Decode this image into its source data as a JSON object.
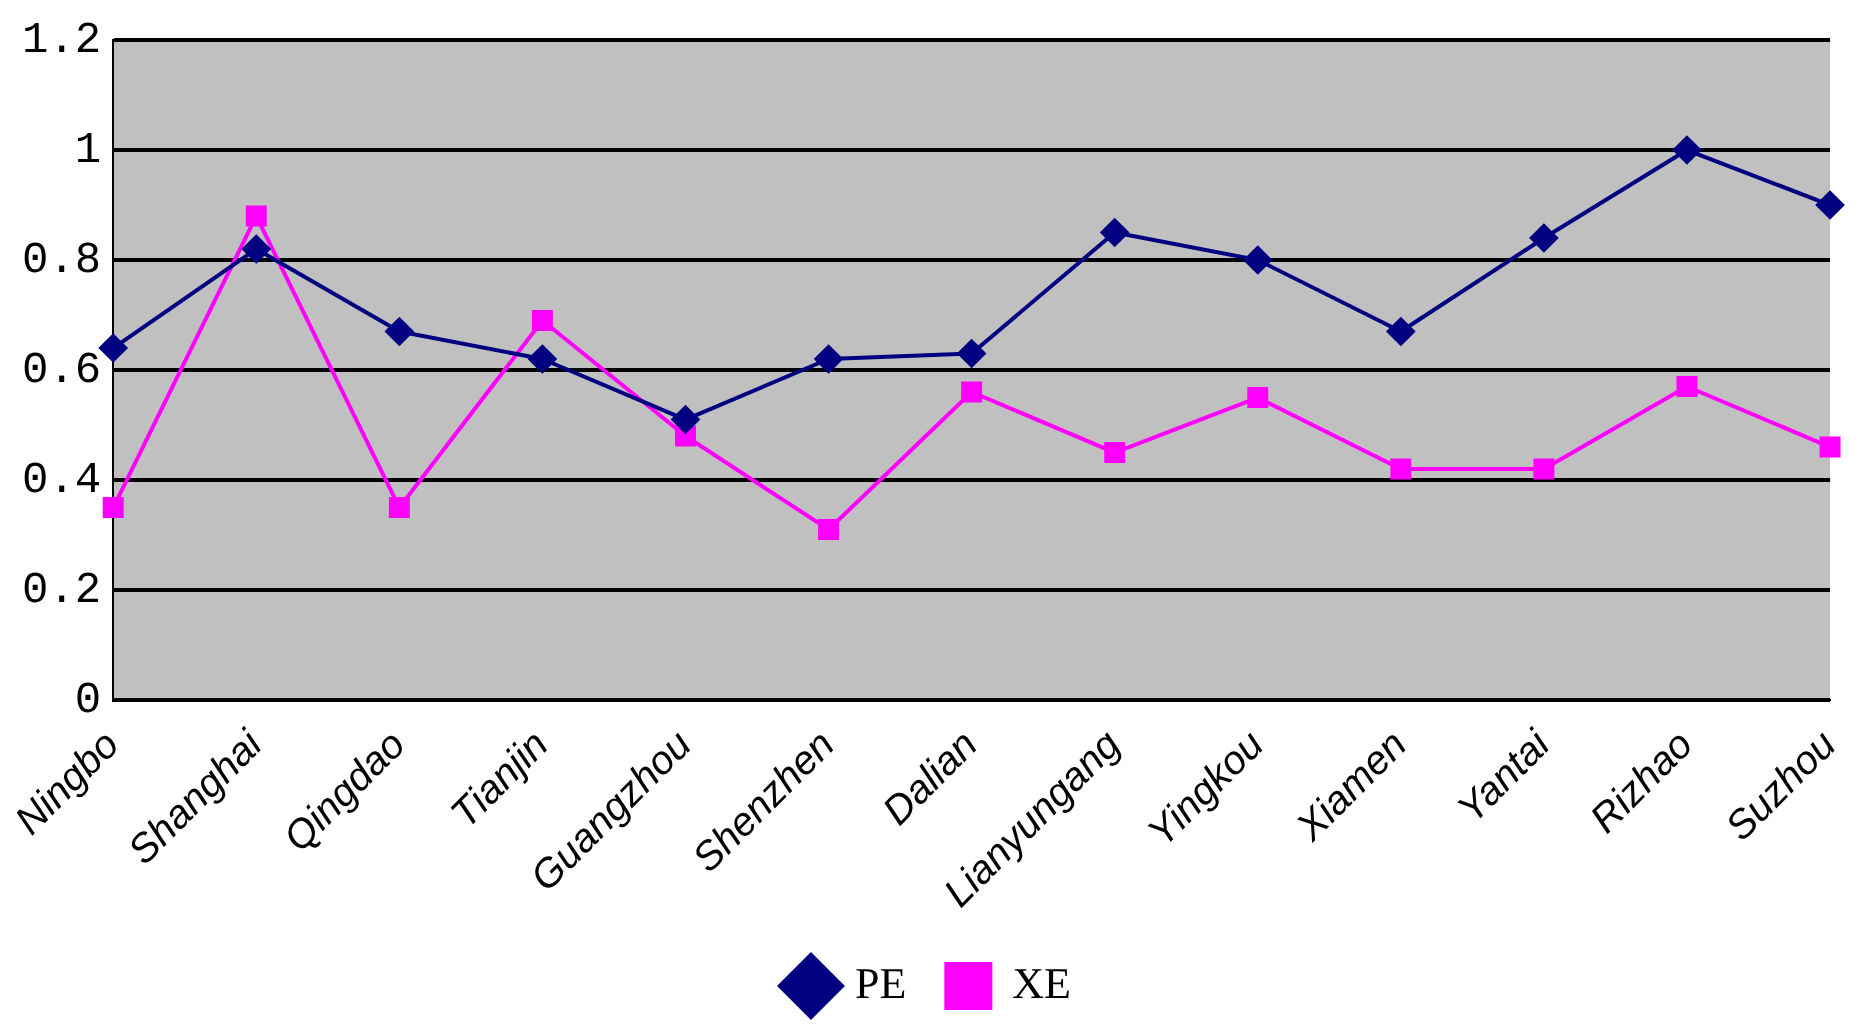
{
  "chart_data": {
    "type": "line",
    "categories": [
      "Ningbo",
      "Shanghai",
      "Qingdao",
      "Tianjin",
      "Guangzhou",
      "Shenzhen",
      "Dalian",
      "Lianyungang",
      "Yingkou",
      "Xiamen",
      "Yantai",
      "Rizhao",
      "Suzhou"
    ],
    "series": [
      {
        "name": "PE",
        "color": "#000080",
        "marker": "diamond",
        "values": [
          0.64,
          0.82,
          0.67,
          0.62,
          0.51,
          0.62,
          0.63,
          0.85,
          0.8,
          0.67,
          0.84,
          1.0,
          0.9
        ]
      },
      {
        "name": "XE",
        "color": "#ff00ff",
        "marker": "square",
        "values": [
          0.35,
          0.88,
          0.35,
          0.69,
          0.48,
          0.31,
          0.56,
          0.45,
          0.55,
          0.42,
          0.42,
          0.57,
          0.46
        ]
      }
    ],
    "ylim": [
      0,
      1.2
    ],
    "yticks": [
      0,
      {
        "value": 0.2,
        "label": "0.2"
      },
      {
        "value": 0.4,
        "label": "0.4"
      },
      {
        "value": 0.6,
        "label": "0.6"
      },
      {
        "value": 0.8,
        "label": "0.8"
      },
      1,
      {
        "value": 1.2,
        "label": "1.2"
      }
    ],
    "grid": "y",
    "legend": "bottom",
    "line_style": "solid"
  }
}
